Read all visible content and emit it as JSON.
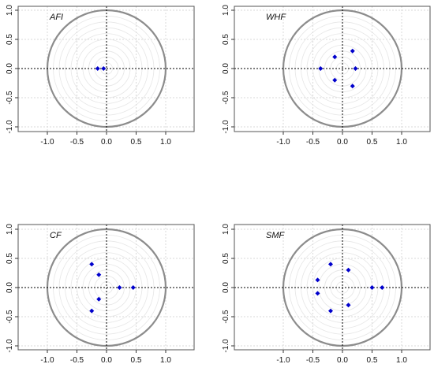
{
  "colors": {
    "point": "#0000cc",
    "unit_circle": "#8c8c8c",
    "rings": "#e6e6e6",
    "grid": "#d8d8d8"
  },
  "chart_data": [
    {
      "type": "scatter",
      "label": "AFI",
      "xlim": [
        -1.5,
        1.5
      ],
      "ylim": [
        -1.1,
        1.1
      ],
      "xticks": [
        "-1.0",
        "-0.5",
        "0.0",
        "0.5",
        "1.0"
      ],
      "xtick_values": [
        -1.0,
        -0.5,
        0.0,
        0.5,
        1.0
      ],
      "yticks": [
        "-1.0",
        "-0.5",
        "0.0",
        "0.5",
        "1.0"
      ],
      "ytick_values": [
        -1.0,
        -0.5,
        0.0,
        0.5,
        1.0
      ],
      "grid": true,
      "unit_circle": true,
      "points": [
        {
          "x": -0.15,
          "y": 0.0
        },
        {
          "x": -0.05,
          "y": 0.0
        }
      ]
    },
    {
      "type": "scatter",
      "label": "WHF",
      "xlim": [
        -1.5,
        1.5
      ],
      "ylim": [
        -1.1,
        1.1
      ],
      "xticks": [
        "-1.0",
        "-0.5",
        "0.0",
        "0.5",
        "1.0"
      ],
      "xtick_values": [
        -1.0,
        -0.5,
        0.0,
        0.5,
        1.0
      ],
      "yticks": [
        "-1.0",
        "-0.5",
        "0.0",
        "0.5",
        "1.0"
      ],
      "ytick_values": [
        -1.0,
        -0.5,
        0.0,
        0.5,
        1.0
      ],
      "grid": true,
      "unit_circle": true,
      "points": [
        {
          "x": -0.37,
          "y": 0.0
        },
        {
          "x": -0.13,
          "y": 0.2
        },
        {
          "x": -0.13,
          "y": -0.2
        },
        {
          "x": 0.17,
          "y": 0.3
        },
        {
          "x": 0.17,
          "y": -0.3
        },
        {
          "x": 0.22,
          "y": 0.0
        }
      ]
    },
    {
      "type": "scatter",
      "label": "CF",
      "xlim": [
        -1.5,
        1.5
      ],
      "ylim": [
        -1.1,
        1.1
      ],
      "xticks": [
        "-1.0",
        "-0.5",
        "0.0",
        "0.5",
        "1.0"
      ],
      "xtick_values": [
        -1.0,
        -0.5,
        0.0,
        0.5,
        1.0
      ],
      "yticks": [
        "-1.0",
        "-0.5",
        "0.0",
        "0.5",
        "1.0"
      ],
      "ytick_values": [
        -1.0,
        -0.5,
        0.0,
        0.5,
        1.0
      ],
      "grid": true,
      "unit_circle": true,
      "points": [
        {
          "x": -0.25,
          "y": 0.4
        },
        {
          "x": -0.25,
          "y": -0.4
        },
        {
          "x": -0.13,
          "y": 0.22
        },
        {
          "x": -0.13,
          "y": -0.2
        },
        {
          "x": 0.22,
          "y": 0.0
        },
        {
          "x": 0.45,
          "y": 0.0
        }
      ]
    },
    {
      "type": "scatter",
      "label": "SMF",
      "xlim": [
        -1.5,
        1.5
      ],
      "ylim": [
        -1.1,
        1.1
      ],
      "xticks": [
        "-1.0",
        "-0.5",
        "0.0",
        "0.5",
        "1.0"
      ],
      "xtick_values": [
        -1.0,
        -0.5,
        0.0,
        0.5,
        1.0
      ],
      "yticks": [
        "-1.0",
        "-0.5",
        "0.0",
        "0.5",
        "1.0"
      ],
      "ytick_values": [
        -1.0,
        -0.5,
        0.0,
        0.5,
        1.0
      ],
      "grid": true,
      "unit_circle": true,
      "points": [
        {
          "x": -0.42,
          "y": 0.13
        },
        {
          "x": -0.42,
          "y": -0.1
        },
        {
          "x": -0.2,
          "y": 0.4
        },
        {
          "x": -0.2,
          "y": -0.4
        },
        {
          "x": 0.1,
          "y": 0.3
        },
        {
          "x": 0.1,
          "y": -0.3
        },
        {
          "x": 0.5,
          "y": 0.0
        },
        {
          "x": 0.67,
          "y": 0.0
        }
      ]
    }
  ]
}
